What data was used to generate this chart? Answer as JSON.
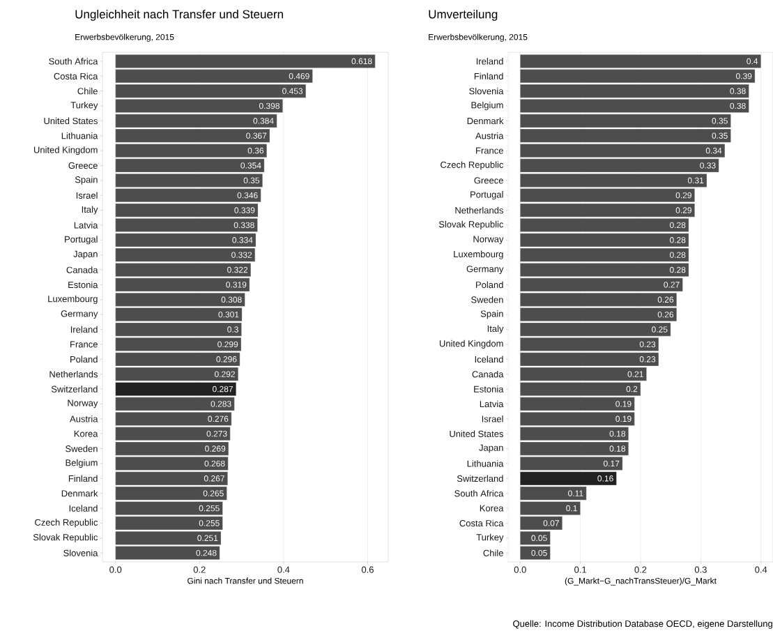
{
  "chart_data": [
    {
      "type": "bar",
      "orientation": "horizontal",
      "title": "Ungleichheit nach Transfer und Steuern",
      "subtitle": "Erwerbsbevölkerung, 2015",
      "xlabel": "Gini nach Transfer und Steuern",
      "categories": [
        "South Africa",
        "Costa Rica",
        "Chile",
        "Turkey",
        "United States",
        "Lithuania",
        "United Kingdom",
        "Greece",
        "Spain",
        "Israel",
        "Italy",
        "Latvia",
        "Portugal",
        "Japan",
        "Canada",
        "Estonia",
        "Luxembourg",
        "Germany",
        "Ireland",
        "France",
        "Poland",
        "Netherlands",
        "Switzerland",
        "Norway",
        "Austria",
        "Korea",
        "Sweden",
        "Belgium",
        "Finland",
        "Denmark",
        "Iceland",
        "Czech Republic",
        "Slovak Republic",
        "Slovenia"
      ],
      "values": [
        0.618,
        0.469,
        0.453,
        0.398,
        0.384,
        0.367,
        0.36,
        0.354,
        0.35,
        0.346,
        0.339,
        0.338,
        0.334,
        0.332,
        0.322,
        0.319,
        0.308,
        0.301,
        0.3,
        0.299,
        0.296,
        0.292,
        0.287,
        0.283,
        0.276,
        0.273,
        0.269,
        0.268,
        0.267,
        0.265,
        0.255,
        0.255,
        0.251,
        0.248
      ],
      "colors": [
        "#4d4d4d",
        "#4d4d4d",
        "#4d4d4d",
        "#4d4d4d",
        "#4d4d4d",
        "#4d4d4d",
        "#4d4d4d",
        "#4d4d4d",
        "#4d4d4d",
        "#4d4d4d",
        "#4d4d4d",
        "#4d4d4d",
        "#4d4d4d",
        "#4d4d4d",
        "#4d4d4d",
        "#4d4d4d",
        "#4d4d4d",
        "#4d4d4d",
        "#4d4d4d",
        "#4d4d4d",
        "#4d4d4d",
        "#4d4d4d",
        "#222222",
        "#4d4d4d",
        "#4d4d4d",
        "#4d4d4d",
        "#4d4d4d",
        "#4d4d4d",
        "#4d4d4d",
        "#4d4d4d",
        "#4d4d4d",
        "#4d4d4d",
        "#4d4d4d",
        "#4d4d4d"
      ],
      "data_labels": true,
      "grid": "x",
      "xlim": [
        -0.031,
        0.649
      ],
      "xticks": [
        {
          "value": 0,
          "label": "0.0"
        },
        {
          "value": 0.2,
          "label": "0.2"
        },
        {
          "value": 0.4,
          "label": "0.4"
        },
        {
          "value": 0.6,
          "label": "0.6"
        }
      ]
    },
    {
      "type": "bar",
      "orientation": "horizontal",
      "title": "Umverteilung",
      "subtitle": "Erwerbsbevölkerung, 2015",
      "xlabel": "(G_Markt−G_nachTransSteuer)/G_Markt",
      "categories": [
        "Ireland",
        "Finland",
        "Slovenia",
        "Belgium",
        "Denmark",
        "Austria",
        "France",
        "Czech Republic",
        "Greece",
        "Portugal",
        "Netherlands",
        "Slovak Republic",
        "Norway",
        "Luxembourg",
        "Germany",
        "Poland",
        "Sweden",
        "Spain",
        "Italy",
        "United Kingdom",
        "Iceland",
        "Canada",
        "Estonia",
        "Latvia",
        "Israel",
        "United States",
        "Japan",
        "Lithuania",
        "Switzerland",
        "South Africa",
        "Korea",
        "Costa Rica",
        "Turkey",
        "Chile"
      ],
      "values": [
        0.4,
        0.39,
        0.38,
        0.38,
        0.35,
        0.35,
        0.34,
        0.33,
        0.31,
        0.29,
        0.29,
        0.28,
        0.28,
        0.28,
        0.28,
        0.27,
        0.26,
        0.26,
        0.25,
        0.23,
        0.23,
        0.21,
        0.2,
        0.19,
        0.19,
        0.18,
        0.18,
        0.17,
        0.16,
        0.11,
        0.1,
        0.07,
        0.05,
        0.05
      ],
      "colors": [
        "#4d4d4d",
        "#4d4d4d",
        "#4d4d4d",
        "#4d4d4d",
        "#4d4d4d",
        "#4d4d4d",
        "#4d4d4d",
        "#4d4d4d",
        "#4d4d4d",
        "#4d4d4d",
        "#4d4d4d",
        "#4d4d4d",
        "#4d4d4d",
        "#4d4d4d",
        "#4d4d4d",
        "#4d4d4d",
        "#4d4d4d",
        "#4d4d4d",
        "#4d4d4d",
        "#4d4d4d",
        "#4d4d4d",
        "#4d4d4d",
        "#4d4d4d",
        "#4d4d4d",
        "#4d4d4d",
        "#4d4d4d",
        "#4d4d4d",
        "#4d4d4d",
        "#222222",
        "#4d4d4d",
        "#4d4d4d",
        "#4d4d4d",
        "#4d4d4d",
        "#4d4d4d"
      ],
      "data_labels": true,
      "grid": "x",
      "xlim": [
        -0.02,
        0.42
      ],
      "xticks": [
        {
          "value": 0,
          "label": "0.0"
        },
        {
          "value": 0.1,
          "label": "0.1"
        },
        {
          "value": 0.2,
          "label": "0.2"
        },
        {
          "value": 0.3,
          "label": "0.3"
        },
        {
          "value": 0.4,
          "label": "0.4"
        }
      ],
      "annotations": [
        "Quelle: Income Distribution Database OECD, eigene Darstellung"
      ]
    }
  ]
}
